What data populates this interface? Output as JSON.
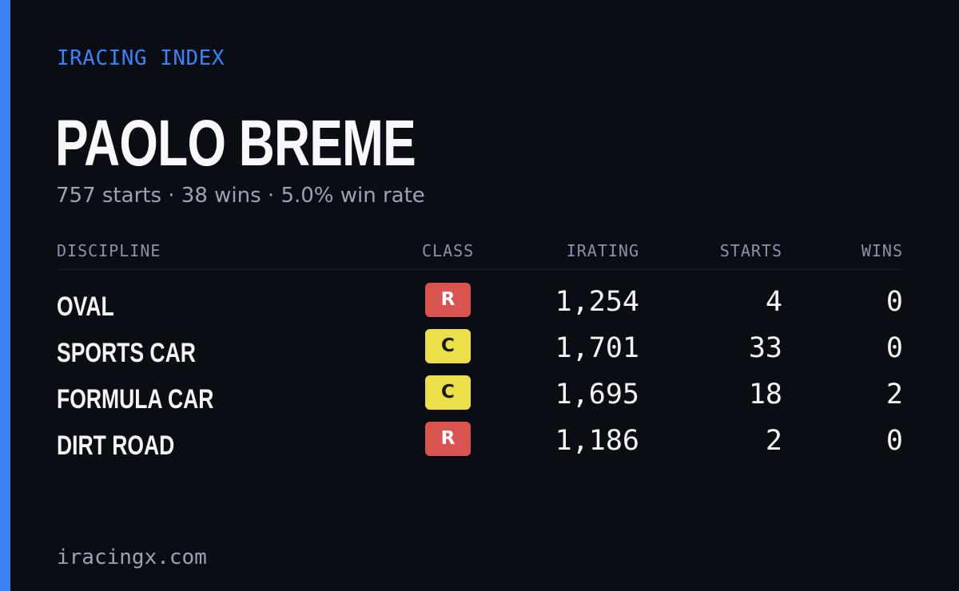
{
  "brand": "IRACING INDEX",
  "driver": {
    "name": "PAOLO BREME",
    "summary": "757 starts · 38 wins · 5.0% win rate"
  },
  "table": {
    "headers": {
      "discipline": "DISCIPLINE",
      "class": "CLASS",
      "irating": "IRATING",
      "starts": "STARTS",
      "wins": "WINS"
    },
    "rows": [
      {
        "discipline": "OVAL",
        "class": "R",
        "irating": "1,254",
        "starts": "4",
        "wins": "0"
      },
      {
        "discipline": "SPORTS CAR",
        "class": "C",
        "irating": "1,701",
        "starts": "33",
        "wins": "0"
      },
      {
        "discipline": "FORMULA CAR",
        "class": "C",
        "irating": "1,695",
        "starts": "18",
        "wins": "2"
      },
      {
        "discipline": "DIRT ROAD",
        "class": "R",
        "irating": "1,186",
        "starts": "2",
        "wins": "0"
      }
    ]
  },
  "footer": "iracingx.com",
  "colors": {
    "background": "#0a0d14",
    "accent": "#3b82f6",
    "class_R": "#d9534f",
    "class_C": "#ebe04a",
    "muted_text": "#9ba3b4"
  }
}
